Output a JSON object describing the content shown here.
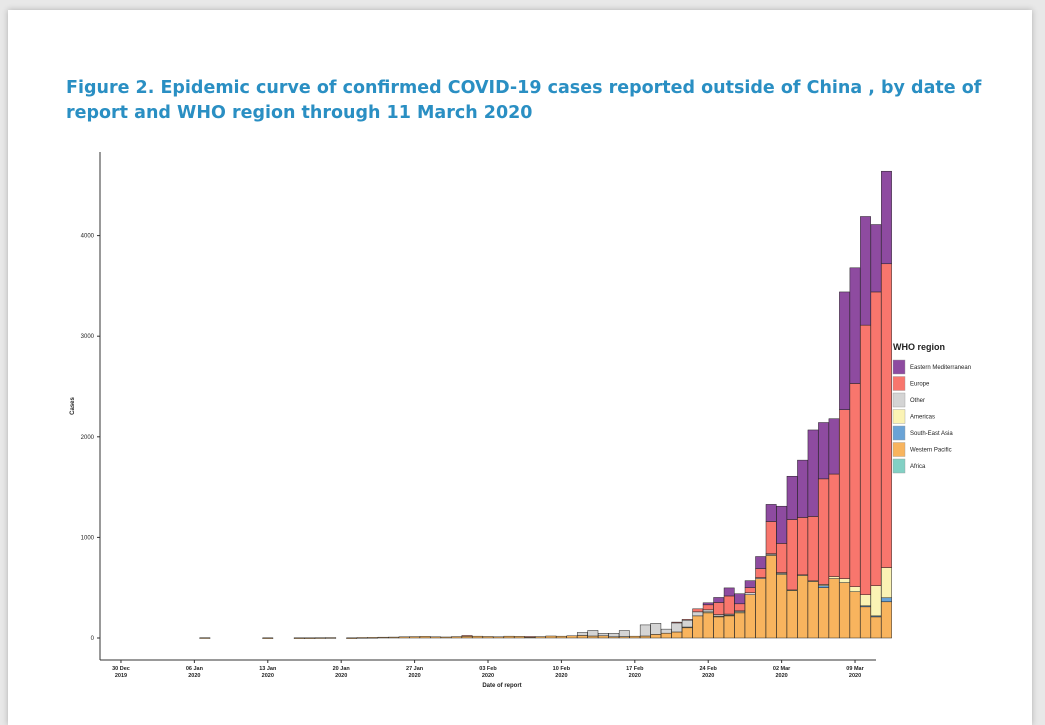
{
  "figure_title": "Figure 2. Epidemic curve of confirmed COVID-19 cases reported outside of China , by date of report and WHO region through 11 March 2020",
  "colors": {
    "title": "#2a8fc3",
    "Eastern Mediterranean": "#8e4ba0",
    "Europe": "#f8766d",
    "Other": "#d4d4d4",
    "Americas": "#fbf3b4",
    "South-East Asia": "#6aa3d6",
    "Western Pacific": "#f8b45e",
    "Africa": "#82d0c4"
  },
  "chart_data": {
    "type": "bar",
    "stacked": true,
    "title": "",
    "xlabel": "Date of report",
    "ylabel": "Cases",
    "ylim": [
      0,
      4800
    ],
    "yticks": [
      0,
      1000,
      2000,
      3000,
      4000
    ],
    "xticks": [
      {
        "day": 0,
        "label1": "30 Dec",
        "label2": "2019"
      },
      {
        "day": 7,
        "label1": "06 Jan",
        "label2": "2020"
      },
      {
        "day": 14,
        "label1": "13 Jan",
        "label2": "2020"
      },
      {
        "day": 21,
        "label1": "20 Jan",
        "label2": "2020"
      },
      {
        "day": 28,
        "label1": "27 Jan",
        "label2": "2020"
      },
      {
        "day": 35,
        "label1": "03 Feb",
        "label2": "2020"
      },
      {
        "day": 42,
        "label1": "10 Feb",
        "label2": "2020"
      },
      {
        "day": 49,
        "label1": "17 Feb",
        "label2": "2020"
      },
      {
        "day": 56,
        "label1": "24 Feb",
        "label2": "2020"
      },
      {
        "day": 63,
        "label1": "02 Mar",
        "label2": "2020"
      },
      {
        "day": 70,
        "label1": "09 Mar",
        "label2": "2020"
      }
    ],
    "x_range": [
      -2,
      72
    ],
    "legend_title": "WHO region",
    "legend_position": "right",
    "grid": false,
    "series": [
      {
        "name": "Africa",
        "values": []
      },
      {
        "name": "Western Pacific",
        "values": [
          [
            8,
            3
          ],
          [
            14,
            2
          ],
          [
            17,
            2
          ],
          [
            18,
            2
          ],
          [
            19,
            3
          ],
          [
            20,
            4
          ],
          [
            22,
            2
          ],
          [
            23,
            5
          ],
          [
            24,
            6
          ],
          [
            25,
            8
          ],
          [
            26,
            9
          ],
          [
            27,
            12
          ],
          [
            28,
            14
          ],
          [
            29,
            16
          ],
          [
            30,
            12
          ],
          [
            31,
            10
          ],
          [
            32,
            14
          ],
          [
            33,
            22
          ],
          [
            34,
            18
          ],
          [
            35,
            15
          ],
          [
            36,
            12
          ],
          [
            37,
            18
          ],
          [
            38,
            16
          ],
          [
            39,
            12
          ],
          [
            40,
            14
          ],
          [
            41,
            20
          ],
          [
            42,
            18
          ],
          [
            43,
            22
          ],
          [
            44,
            25
          ],
          [
            45,
            20
          ],
          [
            46,
            22
          ],
          [
            47,
            12
          ],
          [
            48,
            14
          ],
          [
            49,
            18
          ],
          [
            50,
            20
          ],
          [
            51,
            36
          ],
          [
            52,
            48
          ],
          [
            53,
            60
          ],
          [
            54,
            105
          ],
          [
            55,
            220
          ],
          [
            56,
            250
          ],
          [
            57,
            210
          ],
          [
            58,
            220
          ],
          [
            59,
            250
          ],
          [
            60,
            430
          ],
          [
            61,
            590
          ],
          [
            62,
            820
          ],
          [
            63,
            630
          ],
          [
            64,
            470
          ],
          [
            65,
            620
          ],
          [
            66,
            560
          ],
          [
            67,
            500
          ],
          [
            68,
            590
          ],
          [
            69,
            550
          ],
          [
            70,
            460
          ],
          [
            71,
            310
          ],
          [
            72,
            210
          ],
          [
            73,
            360
          ]
        ]
      },
      {
        "name": "South-East Asia",
        "values": [
          [
            67,
            20
          ],
          [
            71,
            10
          ],
          [
            72,
            10
          ],
          [
            73,
            40
          ]
        ]
      },
      {
        "name": "Americas",
        "values": [
          [
            54,
            4
          ],
          [
            56,
            10
          ],
          [
            57,
            8
          ],
          [
            58,
            8
          ],
          [
            59,
            10
          ],
          [
            62,
            8
          ],
          [
            63,
            10
          ],
          [
            64,
            8
          ],
          [
            65,
            8
          ],
          [
            66,
            8
          ],
          [
            67,
            12
          ],
          [
            68,
            20
          ],
          [
            69,
            40
          ],
          [
            70,
            50
          ],
          [
            71,
            110
          ],
          [
            72,
            300
          ],
          [
            73,
            300
          ]
        ]
      },
      {
        "name": "Other",
        "values": [
          [
            44,
            30
          ],
          [
            45,
            55
          ],
          [
            46,
            25
          ],
          [
            47,
            35
          ],
          [
            48,
            60
          ],
          [
            50,
            110
          ],
          [
            51,
            110
          ],
          [
            52,
            40
          ],
          [
            53,
            90
          ],
          [
            54,
            70
          ],
          [
            55,
            40
          ],
          [
            56,
            20
          ],
          [
            57,
            15
          ],
          [
            58,
            10
          ],
          [
            59,
            10
          ],
          [
            60,
            20
          ],
          [
            61,
            10
          ],
          [
            62,
            10
          ],
          [
            63,
            10
          ]
        ]
      },
      {
        "name": "Europe",
        "values": [
          [
            33,
            3
          ],
          [
            39,
            3
          ],
          [
            53,
            8
          ],
          [
            54,
            6
          ],
          [
            55,
            30
          ],
          [
            56,
            50
          ],
          [
            57,
            120
          ],
          [
            58,
            180
          ],
          [
            59,
            70
          ],
          [
            60,
            50
          ],
          [
            61,
            90
          ],
          [
            62,
            320
          ],
          [
            63,
            290
          ],
          [
            64,
            700
          ],
          [
            65,
            570
          ],
          [
            66,
            640
          ],
          [
            67,
            1050
          ],
          [
            68,
            1020
          ],
          [
            69,
            1680
          ],
          [
            70,
            2020
          ],
          [
            71,
            2680
          ],
          [
            72,
            2920
          ],
          [
            73,
            3020
          ]
        ]
      },
      {
        "name": "Eastern Mediterranean",
        "values": [
          [
            56,
            20
          ],
          [
            57,
            50
          ],
          [
            58,
            80
          ],
          [
            59,
            100
          ],
          [
            60,
            70
          ],
          [
            61,
            120
          ],
          [
            62,
            170
          ],
          [
            63,
            370
          ],
          [
            64,
            430
          ],
          [
            65,
            570
          ],
          [
            66,
            860
          ],
          [
            67,
            560
          ],
          [
            68,
            550
          ],
          [
            69,
            1170
          ],
          [
            70,
            1150
          ],
          [
            71,
            1080
          ],
          [
            72,
            670
          ],
          [
            73,
            920
          ]
        ]
      }
    ]
  }
}
